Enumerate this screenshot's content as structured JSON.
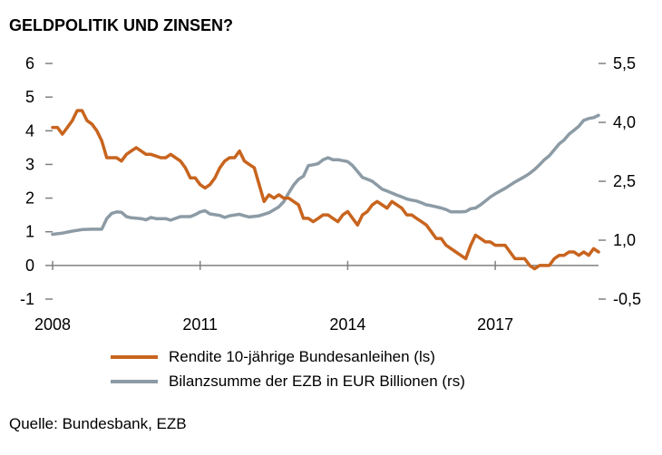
{
  "title": "GELDPOLITIK UND ZINSEN?",
  "source": "Quelle: Bundesbank, EZB",
  "colors": {
    "series_left": "#c8641e",
    "series_right": "#8c9ba5",
    "axis": "#808080"
  },
  "chart_data": {
    "type": "line",
    "title": "GELDPOLITIK UND ZINSEN?",
    "xlabel": "",
    "x_ticks": [
      "2008",
      "2011",
      "2014",
      "2017"
    ],
    "y_left": {
      "range": [
        -1,
        6
      ],
      "ticks": [
        "6",
        "5",
        "4",
        "3",
        "2",
        "1",
        "0",
        "-1"
      ]
    },
    "y_right": {
      "range": [
        -0.5,
        5.5
      ],
      "ticks": [
        "5,5",
        "4,0",
        "2,5",
        "1,0",
        "-0,5"
      ]
    },
    "grid": false,
    "legend_position": "bottom",
    "series": [
      {
        "name": "Rendite 10-jährige Bundesanleihen (ls)",
        "axis": "left",
        "points": [
          [
            "2008.0",
            4.1
          ],
          [
            "2008.1",
            4.1
          ],
          [
            "2008.2",
            3.9
          ],
          [
            "2008.3",
            4.1
          ],
          [
            "2008.4",
            4.3
          ],
          [
            "2008.5",
            4.6
          ],
          [
            "2008.6",
            4.6
          ],
          [
            "2008.7",
            4.3
          ],
          [
            "2008.8",
            4.2
          ],
          [
            "2008.9",
            4.0
          ],
          [
            "2009.0",
            3.7
          ],
          [
            "2009.1",
            3.2
          ],
          [
            "2009.3",
            3.2
          ],
          [
            "2009.4",
            3.1
          ],
          [
            "2009.5",
            3.3
          ],
          [
            "2009.6",
            3.4
          ],
          [
            "2009.7",
            3.5
          ],
          [
            "2009.8",
            3.4
          ],
          [
            "2009.9",
            3.3
          ],
          [
            "2010.0",
            3.3
          ],
          [
            "2010.2",
            3.2
          ],
          [
            "2010.3",
            3.2
          ],
          [
            "2010.4",
            3.3
          ],
          [
            "2010.5",
            3.2
          ],
          [
            "2010.6",
            3.1
          ],
          [
            "2010.7",
            2.9
          ],
          [
            "2010.8",
            2.6
          ],
          [
            "2010.9",
            2.6
          ],
          [
            "2011.0",
            2.4
          ],
          [
            "2011.1",
            2.3
          ],
          [
            "2011.2",
            2.4
          ],
          [
            "2011.3",
            2.6
          ],
          [
            "2011.4",
            2.9
          ],
          [
            "2011.5",
            3.1
          ],
          [
            "2011.6",
            3.2
          ],
          [
            "2011.7",
            3.2
          ],
          [
            "2011.8",
            3.4
          ],
          [
            "2011.9",
            3.1
          ],
          [
            "2012.0",
            3.0
          ],
          [
            "2012.1",
            2.9
          ],
          [
            "2012.2",
            2.4
          ],
          [
            "2012.3",
            1.9
          ],
          [
            "2012.4",
            2.1
          ],
          [
            "2012.5",
            2.0
          ],
          [
            "2012.6",
            2.1
          ],
          [
            "2012.7",
            2.0
          ],
          [
            "2012.8",
            2.0
          ],
          [
            "2012.9",
            1.9
          ],
          [
            "2013.0",
            1.8
          ],
          [
            "2013.1",
            1.4
          ],
          [
            "2013.2",
            1.4
          ],
          [
            "2013.3",
            1.3
          ],
          [
            "2013.4",
            1.4
          ],
          [
            "2013.5",
            1.5
          ],
          [
            "2013.6",
            1.5
          ],
          [
            "2013.7",
            1.4
          ],
          [
            "2013.8",
            1.3
          ],
          [
            "2013.9",
            1.5
          ],
          [
            "2014.0",
            1.6
          ],
          [
            "2014.1",
            1.4
          ],
          [
            "2014.2",
            1.2
          ],
          [
            "2014.3",
            1.5
          ],
          [
            "2014.4",
            1.6
          ],
          [
            "2014.5",
            1.8
          ],
          [
            "2014.6",
            1.9
          ],
          [
            "2014.7",
            1.8
          ],
          [
            "2014.8",
            1.7
          ],
          [
            "2014.9",
            1.9
          ],
          [
            "2015.0",
            1.8
          ],
          [
            "2015.1",
            1.7
          ],
          [
            "2015.2",
            1.5
          ],
          [
            "2015.3",
            1.5
          ],
          [
            "2015.4",
            1.4
          ],
          [
            "2015.5",
            1.3
          ],
          [
            "2015.6",
            1.2
          ],
          [
            "2015.7",
            1.0
          ],
          [
            "2015.8",
            0.8
          ],
          [
            "2015.9",
            0.8
          ],
          [
            "2016.0",
            0.6
          ],
          [
            "2016.1",
            0.5
          ],
          [
            "2016.2",
            0.4
          ],
          [
            "2016.3",
            0.3
          ],
          [
            "2016.4",
            0.2
          ],
          [
            "2016.5",
            0.6
          ],
          [
            "2016.6",
            0.9
          ],
          [
            "2016.7",
            0.8
          ],
          [
            "2016.8",
            0.7
          ],
          [
            "2016.9",
            0.7
          ],
          [
            "2017.0",
            0.6
          ],
          [
            "2017.1",
            0.6
          ],
          [
            "2017.2",
            0.6
          ],
          [
            "2017.3",
            0.4
          ],
          [
            "2017.4",
            0.2
          ],
          [
            "2017.5",
            0.2
          ],
          [
            "2017.6",
            0.2
          ],
          [
            "2017.7",
            0.0
          ],
          [
            "2017.8",
            -0.1
          ],
          [
            "2017.9",
            0.0
          ],
          [
            "2018.0",
            0.0
          ],
          [
            "2018.1",
            0.0
          ],
          [
            "2018.2",
            0.2
          ],
          [
            "2018.3",
            0.3
          ],
          [
            "2018.4",
            0.3
          ],
          [
            "2018.5",
            0.4
          ],
          [
            "2018.6",
            0.4
          ],
          [
            "2018.7",
            0.3
          ],
          [
            "2018.8",
            0.4
          ],
          [
            "2018.9",
            0.3
          ],
          [
            "2019.0",
            0.5
          ],
          [
            "2019.1",
            0.4
          ]
        ]
      },
      {
        "name": "Bilanzsumme der EZB in EUR Billionen (rs)",
        "axis": "right",
        "points": [
          [
            "2008.0",
            1.15
          ],
          [
            "2008.2",
            1.18
          ],
          [
            "2008.4",
            1.23
          ],
          [
            "2008.6",
            1.27
          ],
          [
            "2008.8",
            1.28
          ],
          [
            "2009.0",
            1.28
          ],
          [
            "2009.1",
            1.55
          ],
          [
            "2009.2",
            1.68
          ],
          [
            "2009.3",
            1.72
          ],
          [
            "2009.4",
            1.71
          ],
          [
            "2009.5",
            1.6
          ],
          [
            "2009.6",
            1.57
          ],
          [
            "2009.8",
            1.55
          ],
          [
            "2009.9",
            1.52
          ],
          [
            "2010.0",
            1.58
          ],
          [
            "2010.1",
            1.55
          ],
          [
            "2010.3",
            1.55
          ],
          [
            "2010.4",
            1.51
          ],
          [
            "2010.6",
            1.6
          ],
          [
            "2010.8",
            1.6
          ],
          [
            "2010.9",
            1.65
          ],
          [
            "2011.0",
            1.72
          ],
          [
            "2011.1",
            1.75
          ],
          [
            "2011.2",
            1.67
          ],
          [
            "2011.4",
            1.63
          ],
          [
            "2011.5",
            1.58
          ],
          [
            "2011.6",
            1.62
          ],
          [
            "2011.8",
            1.66
          ],
          [
            "2011.9",
            1.62
          ],
          [
            "2012.0",
            1.59
          ],
          [
            "2012.2",
            1.62
          ],
          [
            "2012.4",
            1.7
          ],
          [
            "2012.6",
            1.85
          ],
          [
            "2012.7",
            1.98
          ],
          [
            "2012.8",
            2.2
          ],
          [
            "2012.9",
            2.4
          ],
          [
            "2013.0",
            2.55
          ],
          [
            "2013.1",
            2.63
          ],
          [
            "2013.2",
            2.9
          ],
          [
            "2013.3",
            2.92
          ],
          [
            "2013.4",
            2.95
          ],
          [
            "2013.5",
            3.05
          ],
          [
            "2013.6",
            3.1
          ],
          [
            "2013.7",
            3.05
          ],
          [
            "2013.8",
            3.05
          ],
          [
            "2014.0",
            3.0
          ],
          [
            "2014.1",
            2.9
          ],
          [
            "2014.2",
            2.75
          ],
          [
            "2014.3",
            2.6
          ],
          [
            "2014.4",
            2.55
          ],
          [
            "2014.5",
            2.5
          ],
          [
            "2014.6",
            2.4
          ],
          [
            "2014.7",
            2.3
          ],
          [
            "2014.8",
            2.25
          ],
          [
            "2014.9",
            2.2
          ],
          [
            "2015.0",
            2.15
          ],
          [
            "2015.1",
            2.1
          ],
          [
            "2015.2",
            2.05
          ],
          [
            "2015.3",
            2.02
          ],
          [
            "2015.4",
            2.0
          ],
          [
            "2015.5",
            1.95
          ],
          [
            "2015.6",
            1.9
          ],
          [
            "2015.7",
            1.88
          ],
          [
            "2015.8",
            1.85
          ],
          [
            "2015.9",
            1.82
          ],
          [
            "2016.0",
            1.78
          ],
          [
            "2016.1",
            1.72
          ],
          [
            "2016.2",
            1.72
          ],
          [
            "2016.3",
            1.72
          ],
          [
            "2016.4",
            1.73
          ],
          [
            "2016.5",
            1.8
          ],
          [
            "2016.6",
            1.82
          ],
          [
            "2016.7",
            1.9
          ],
          [
            "2016.8",
            2.0
          ],
          [
            "2016.9",
            2.1
          ],
          [
            "2017.0",
            2.18
          ],
          [
            "2017.1",
            2.25
          ],
          [
            "2017.2",
            2.32
          ],
          [
            "2017.3",
            2.4
          ],
          [
            "2017.4",
            2.48
          ],
          [
            "2017.5",
            2.55
          ],
          [
            "2017.6",
            2.62
          ],
          [
            "2017.7",
            2.7
          ],
          [
            "2017.8",
            2.8
          ],
          [
            "2017.9",
            2.92
          ],
          [
            "2018.0",
            3.05
          ],
          [
            "2018.1",
            3.15
          ],
          [
            "2018.2",
            3.3
          ],
          [
            "2018.3",
            3.45
          ],
          [
            "2018.4",
            3.55
          ],
          [
            "2018.5",
            3.7
          ],
          [
            "2018.6",
            3.8
          ],
          [
            "2018.7",
            3.9
          ],
          [
            "2018.8",
            4.05
          ],
          [
            "2018.9",
            4.1
          ],
          [
            "2019.0",
            4.12
          ],
          [
            "2019.1",
            4.18
          ]
        ]
      }
    ]
  }
}
